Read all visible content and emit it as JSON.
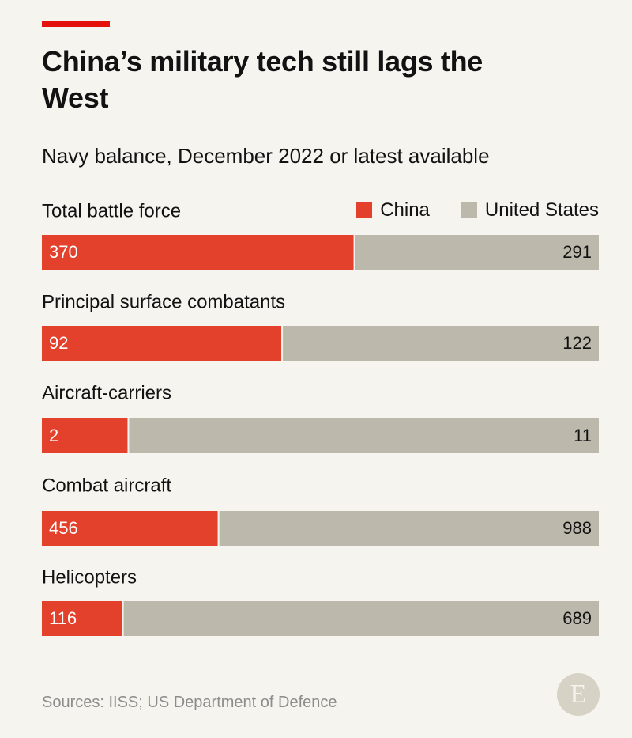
{
  "header": {
    "title": "China’s military tech still lags the West",
    "subtitle": "Navy balance, December 2022 or latest available"
  },
  "legend": {
    "china": "China",
    "us": "United States"
  },
  "colors": {
    "china": "#e3412b",
    "us": "#bcb8ab",
    "brand_red": "#e3120b"
  },
  "chart_data": {
    "type": "bar",
    "orientation": "horizontal",
    "stacked": "percent",
    "categories": [
      "Total battle force",
      "Principal surface combatants",
      "Aircraft-carriers",
      "Combat aircraft",
      "Helicopters"
    ],
    "series": [
      {
        "name": "China",
        "values": [
          370,
          92,
          2,
          456,
          116
        ]
      },
      {
        "name": "United States",
        "values": [
          291,
          122,
          11,
          988,
          689
        ]
      }
    ],
    "legend_position": "top-right",
    "grid": false
  },
  "footer": {
    "sources": "Sources: IISS; US Department of Defence",
    "logo_letter": "E"
  }
}
